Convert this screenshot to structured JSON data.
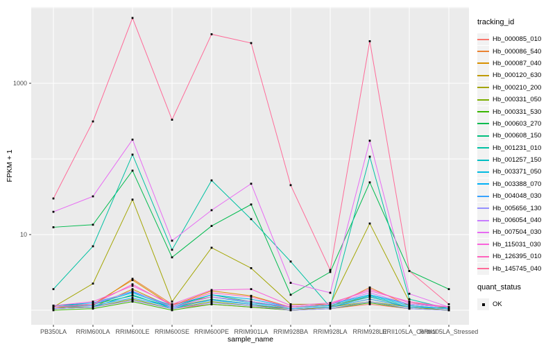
{
  "chart_data": {
    "type": "line",
    "title": "",
    "xlabel": "sample_name",
    "ylabel": "FPKM + 1",
    "yscale": "log10",
    "ylim": [
      0.64,
      10500
    ],
    "grid": true,
    "gridline_values": [
      1,
      10,
      100,
      1000,
      10000
    ],
    "yticks": [
      {
        "value": 10,
        "label": "10"
      },
      {
        "value": 1000,
        "label": "1000"
      }
    ],
    "categories": [
      "PB350LA",
      "RRIM600LA",
      "RRIM600LE",
      "RRIM600SE",
      "RRIM600PE",
      "RRIM901LA",
      "RRIM928BA",
      "RRIM928LA",
      "RRIM928LE",
      "RRII105LA_Control",
      "RRII105LA_Stressed"
    ],
    "series": [
      {
        "name": "Hb_000085_010",
        "color": "#F8766D",
        "values": [
          1.05,
          1.1,
          1.35,
          1.05,
          1.2,
          1.1,
          1.0,
          1.05,
          1.2,
          1.05,
          1.0
        ]
      },
      {
        "name": "Hb_000086_540",
        "color": "#EA8331",
        "values": [
          1.1,
          1.15,
          2.6,
          1.2,
          1.5,
          1.3,
          1.05,
          1.1,
          2.0,
          1.15,
          1.05
        ]
      },
      {
        "name": "Hb_000087_040",
        "color": "#D89000",
        "values": [
          1.05,
          1.2,
          2.5,
          1.15,
          1.8,
          1.55,
          1.1,
          1.15,
          1.5,
          1.1,
          1.0
        ]
      },
      {
        "name": "Hb_000120_630",
        "color": "#C09B00",
        "values": [
          1.1,
          1.1,
          1.9,
          1.1,
          1.4,
          1.2,
          1.0,
          1.1,
          1.4,
          1.1,
          1.05
        ]
      },
      {
        "name": "Hb_000210_200",
        "color": "#A3A500",
        "values": [
          1.1,
          2.25,
          29,
          1.3,
          6.7,
          3.6,
          1.2,
          1.2,
          14,
          1.3,
          1.05
        ]
      },
      {
        "name": "Hb_000331_050",
        "color": "#7CAE00",
        "values": [
          1.05,
          1.1,
          1.4,
          1.05,
          1.3,
          1.15,
          1.05,
          1.1,
          1.3,
          1.1,
          1.0
        ]
      },
      {
        "name": "Hb_000331_530",
        "color": "#39B600",
        "values": [
          1.0,
          1.05,
          1.3,
          1.0,
          1.2,
          1.1,
          1.0,
          1.05,
          1.25,
          1.05,
          1.0
        ]
      },
      {
        "name": "Hb_000603_270",
        "color": "#00BB4E",
        "values": [
          12.5,
          13.5,
          70,
          5.0,
          13,
          25,
          1.6,
          3.2,
          49,
          3.3,
          1.9
        ]
      },
      {
        "name": "Hb_000608_150",
        "color": "#00BF7D",
        "values": [
          1.15,
          1.2,
          1.55,
          1.1,
          1.6,
          1.3,
          1.1,
          1.2,
          1.6,
          1.2,
          1.1
        ]
      },
      {
        "name": "Hb_001231_010",
        "color": "#00C1A3",
        "values": [
          1.9,
          7.0,
          114,
          6.3,
          52,
          16,
          4.4,
          1.1,
          107,
          1.4,
          1.05
        ]
      },
      {
        "name": "Hb_001257_150",
        "color": "#00BFC4",
        "values": [
          1.05,
          1.1,
          1.6,
          1.05,
          1.4,
          1.2,
          1.05,
          1.1,
          1.5,
          1.1,
          1.05
        ]
      },
      {
        "name": "Hb_003371_050",
        "color": "#00BAE0",
        "values": [
          1.1,
          1.2,
          1.7,
          1.1,
          1.5,
          1.25,
          1.1,
          1.15,
          1.55,
          1.15,
          1.05
        ]
      },
      {
        "name": "Hb_003388_070",
        "color": "#00B0F6",
        "values": [
          1.15,
          1.25,
          1.75,
          1.15,
          1.6,
          1.4,
          1.1,
          1.2,
          1.6,
          1.2,
          1.1
        ]
      },
      {
        "name": "Hb_004048_030",
        "color": "#35A2FF",
        "values": [
          1.1,
          1.15,
          1.45,
          1.1,
          1.35,
          1.2,
          1.05,
          1.1,
          1.4,
          1.1,
          1.05
        ]
      },
      {
        "name": "Hb_005656_130",
        "color": "#9590FF",
        "values": [
          1.05,
          1.1,
          1.35,
          1.05,
          1.25,
          1.15,
          1.0,
          1.05,
          1.3,
          1.05,
          1.0
        ]
      },
      {
        "name": "Hb_006054_040",
        "color": "#C77CFF",
        "values": [
          1.1,
          1.2,
          1.8,
          1.1,
          1.5,
          1.3,
          1.1,
          1.2,
          1.7,
          1.2,
          1.1
        ]
      },
      {
        "name": "Hb_007504_030",
        "color": "#E76BF3",
        "values": [
          20,
          32,
          180,
          8.3,
          21,
          47,
          2.3,
          1.7,
          174,
          1.65,
          1.1
        ]
      },
      {
        "name": "Hb_115031_030",
        "color": "#FA62DB",
        "values": [
          1.15,
          1.3,
          2.1,
          1.2,
          1.85,
          1.9,
          1.15,
          1.25,
          1.8,
          1.3,
          1.1
        ]
      },
      {
        "name": "Hb_126395_010",
        "color": "#FF62BC",
        "values": [
          1.1,
          1.2,
          2.2,
          1.15,
          1.7,
          1.5,
          1.1,
          1.2,
          1.9,
          1.25,
          1.1
        ]
      },
      {
        "name": "Hb_145745_040",
        "color": "#FF6A98",
        "values": [
          30,
          313,
          7300,
          330,
          4450,
          3400,
          45,
          3.4,
          3600,
          3.3,
          1.2
        ]
      }
    ],
    "legend": {
      "position": "right",
      "color_title": "tracking_id",
      "shape_title": "quant_status",
      "shape_items": [
        {
          "label": "OK",
          "marker": "black-square"
        }
      ]
    },
    "point": {
      "shape": "square",
      "color": "#000000"
    }
  },
  "theme": {
    "panel_bg": "#EBEBEB",
    "grid_color": "#FFFFFF",
    "page_bg": "#FFFFFF",
    "tick_text_color": "#4D4D4D",
    "tick_mark_color": "#333333",
    "title_text_color": "#000000",
    "legend_key_bg": "#F2F2F2"
  }
}
